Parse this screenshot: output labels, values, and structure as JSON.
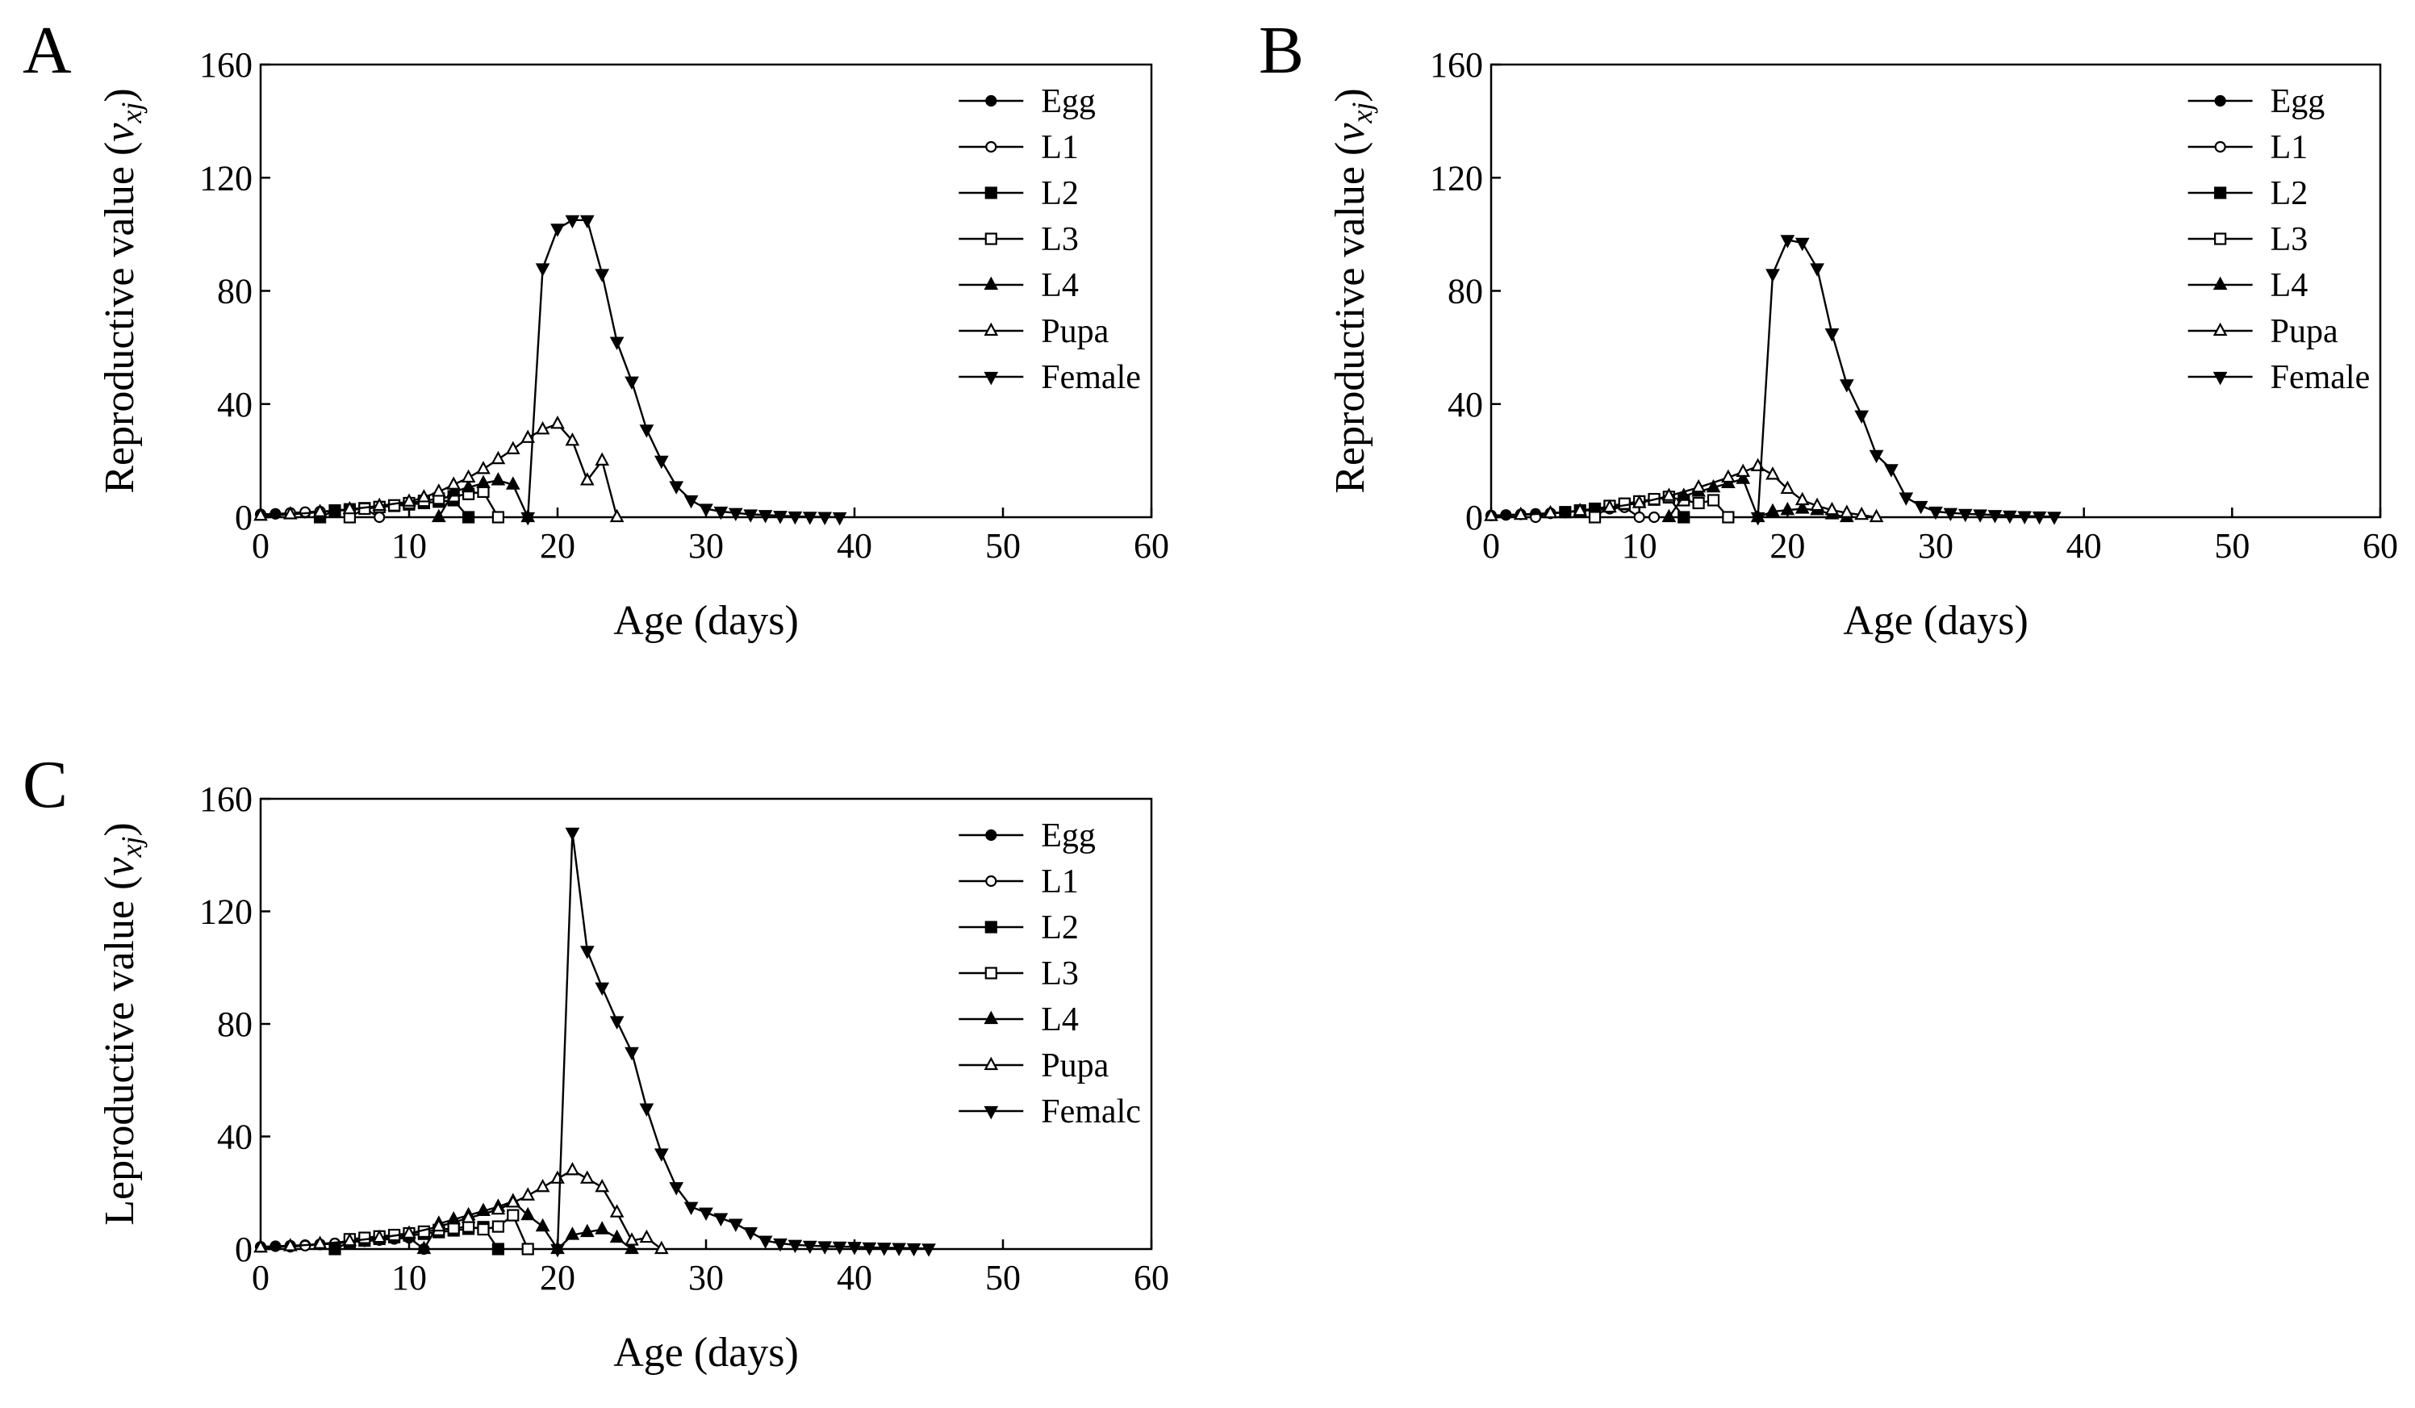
{
  "panels": [
    {
      "letter": "A",
      "xlabel": "Age (days)",
      "ylabel_main": "Reproductive value (",
      "ylabel_var": "v",
      "ylabel_sub": "xj",
      "ylabel_close": ")"
    },
    {
      "letter": "B",
      "xlabel": "Age (days)",
      "ylabel_main": "Reproductive value (",
      "ylabel_var": "v",
      "ylabel_sub": "xj",
      "ylabel_close": ")"
    },
    {
      "letter": "C",
      "xlabel": "Age (days)",
      "ylabel_main": "Leproductive value (",
      "ylabel_var": "v",
      "ylabel_sub": "xj",
      "ylabel_close": ")"
    }
  ],
  "legend": [
    "Egg",
    "L1",
    "L2",
    "L3",
    "L4",
    "Pupa",
    "Female"
  ],
  "legend_c": [
    "Egg",
    "L1",
    "L2",
    "L3",
    "L4",
    "Pupa",
    "Femalc"
  ],
  "series_styles": {
    "Egg": {
      "marker": "circle",
      "fill": "#000000"
    },
    "L1": {
      "marker": "circle",
      "fill": "#ffffff"
    },
    "L2": {
      "marker": "square",
      "fill": "#000000"
    },
    "L3": {
      "marker": "square",
      "fill": "#ffffff"
    },
    "L4": {
      "marker": "triangle-up",
      "fill": "#000000"
    },
    "Pupa": {
      "marker": "triangle-up",
      "fill": "#ffffff"
    },
    "Female": {
      "marker": "triangle-down",
      "fill": "#000000"
    }
  },
  "chart_data": [
    {
      "type": "line",
      "title": "",
      "xlabel": "Age (days)",
      "ylabel": "Reproductive value (vxj)",
      "xlim": [
        0,
        60
      ],
      "ylim": [
        0,
        160
      ],
      "xticks": [
        0,
        10,
        20,
        30,
        40,
        50,
        60
      ],
      "yticks": [
        0,
        40,
        80,
        120,
        160
      ],
      "legend_position": "top-right",
      "grid": false,
      "series": [
        {
          "name": "Egg",
          "x": [
            0,
            1,
            2,
            3,
            4
          ],
          "y": [
            1.0,
            1.2,
            1.4,
            1.6,
            1.9
          ]
        },
        {
          "name": "L1",
          "x": [
            2,
            3,
            4,
            5,
            6,
            7,
            8
          ],
          "y": [
            1.5,
            1.8,
            2.0,
            2.3,
            2.6,
            3.0,
            0
          ]
        },
        {
          "name": "L2",
          "x": [
            4,
            5,
            6,
            7,
            8,
            9,
            10,
            11,
            12,
            13,
            14
          ],
          "y": [
            0,
            2.4,
            2.8,
            3.2,
            3.6,
            4.0,
            4.5,
            5.0,
            5.5,
            6.0,
            0
          ]
        },
        {
          "name": "L3",
          "x": [
            6,
            7,
            8,
            9,
            10,
            11,
            12,
            13,
            14,
            15,
            16
          ],
          "y": [
            0,
            3.0,
            3.6,
            4.2,
            5.0,
            5.8,
            6.6,
            7.4,
            8.2,
            9.0,
            0
          ]
        },
        {
          "name": "L4",
          "x": [
            12,
            13,
            14,
            15,
            16,
            17,
            18
          ],
          "y": [
            0,
            9.0,
            10.5,
            12.0,
            13.0,
            11.5,
            0
          ]
        },
        {
          "name": "Pupa",
          "x": [
            0,
            2,
            4,
            6,
            8,
            10,
            11,
            12,
            13,
            14,
            15,
            16,
            17,
            18,
            19,
            20,
            21,
            22,
            23,
            24
          ],
          "y": [
            0.5,
            1.0,
            1.8,
            2.8,
            4.0,
            5.5,
            7.0,
            9.0,
            11.5,
            14.0,
            17.0,
            20.5,
            24.0,
            28.0,
            31.0,
            33.0,
            27.0,
            13.0,
            20.0,
            0
          ]
        },
        {
          "name": "Female",
          "x": [
            18,
            19,
            20,
            21,
            22,
            23,
            24,
            25,
            26,
            27,
            28,
            29,
            30,
            31,
            32,
            33,
            34,
            35,
            36,
            37,
            38,
            39
          ],
          "y": [
            0,
            88,
            102,
            105,
            105,
            86,
            62,
            48,
            31,
            20,
            11,
            6,
            3,
            2,
            1.5,
            1.0,
            0.8,
            0.5,
            0.3,
            0.2,
            0.1,
            0
          ]
        }
      ]
    },
    {
      "type": "line",
      "title": "",
      "xlabel": "Age (days)",
      "ylabel": "Reproductive value (vxj)",
      "xlim": [
        0,
        60
      ],
      "ylim": [
        0,
        160
      ],
      "xticks": [
        0,
        10,
        20,
        30,
        40,
        50,
        60
      ],
      "yticks": [
        0,
        40,
        80,
        120,
        160
      ],
      "legend_position": "top-right",
      "grid": false,
      "series": [
        {
          "name": "Egg",
          "x": [
            0,
            1,
            2,
            3,
            4,
            5
          ],
          "y": [
            0.6,
            0.8,
            1.0,
            1.2,
            1.4,
            1.6
          ]
        },
        {
          "name": "L1",
          "x": [
            3,
            4,
            5,
            6,
            7,
            8,
            9,
            10,
            11
          ],
          "y": [
            0,
            1.4,
            1.8,
            2.2,
            2.6,
            3.0,
            3.5,
            0,
            0
          ]
        },
        {
          "name": "L2",
          "x": [
            5,
            6,
            7,
            8,
            9,
            10,
            11,
            12,
            13
          ],
          "y": [
            1.8,
            2.4,
            3.0,
            3.8,
            4.6,
            5.4,
            6.2,
            7.0,
            0
          ]
        },
        {
          "name": "L3",
          "x": [
            7,
            8,
            9,
            10,
            11,
            12,
            13,
            14,
            15,
            16
          ],
          "y": [
            0,
            4.0,
            4.8,
            5.6,
            6.4,
            7.2,
            6.0,
            5.0,
            6.0,
            0
          ]
        },
        {
          "name": "L4",
          "x": [
            12,
            13,
            14,
            15,
            16,
            17,
            18,
            19,
            20,
            21,
            22,
            23,
            24
          ],
          "y": [
            0,
            7.5,
            9.0,
            10.5,
            12.0,
            13.5,
            0,
            2.0,
            2.5,
            3.0,
            2.5,
            1.0,
            0
          ]
        },
        {
          "name": "Pupa",
          "x": [
            0,
            2,
            4,
            6,
            8,
            10,
            12,
            14,
            16,
            17,
            18,
            19,
            20,
            21,
            22,
            23,
            24,
            25,
            26
          ],
          "y": [
            0.4,
            0.8,
            1.4,
            2.2,
            3.4,
            5.0,
            7.5,
            10.5,
            14.0,
            16.0,
            18.0,
            15.0,
            10.0,
            6.0,
            4.0,
            2.5,
            1.5,
            0.8,
            0
          ]
        },
        {
          "name": "Female",
          "x": [
            18,
            19,
            20,
            21,
            22,
            23,
            24,
            25,
            26,
            27,
            28,
            29,
            30,
            31,
            32,
            33,
            34,
            35,
            36,
            37,
            38
          ],
          "y": [
            0,
            86,
            98,
            97,
            88,
            65,
            47,
            36,
            22,
            17,
            7,
            4,
            2,
            1.5,
            1.2,
            1.0,
            0.8,
            0.6,
            0.4,
            0.3,
            0.2
          ]
        }
      ]
    },
    {
      "type": "line",
      "title": "",
      "xlabel": "Age (days)",
      "ylabel": "Leproductive value (vxj)",
      "xlim": [
        0,
        60
      ],
      "ylim": [
        0,
        160
      ],
      "xticks": [
        0,
        10,
        20,
        30,
        40,
        50,
        60
      ],
      "yticks": [
        0,
        40,
        80,
        120,
        160
      ],
      "legend_position": "top-right",
      "grid": false,
      "series": [
        {
          "name": "Egg",
          "x": [
            0,
            1,
            2,
            3,
            4,
            5
          ],
          "y": [
            0.8,
            1.0,
            1.2,
            1.4,
            1.7,
            2.0
          ]
        },
        {
          "name": "L1",
          "x": [
            2,
            3,
            4,
            5,
            6,
            7,
            8,
            9,
            10,
            11
          ],
          "y": [
            0.8,
            1.2,
            1.6,
            2.0,
            2.4,
            2.8,
            3.2,
            3.6,
            4.0,
            0
          ]
        },
        {
          "name": "L2",
          "x": [
            5,
            6,
            7,
            8,
            9,
            10,
            11,
            12,
            13,
            14,
            15,
            16
          ],
          "y": [
            0,
            2.5,
            3.0,
            3.6,
            4.2,
            4.8,
            5.4,
            6.0,
            6.6,
            7.2,
            7.8,
            0
          ]
        },
        {
          "name": "L3",
          "x": [
            6,
            7,
            8,
            9,
            10,
            11,
            12,
            13,
            14,
            15,
            16,
            17,
            18
          ],
          "y": [
            3.5,
            4.0,
            4.5,
            5.0,
            5.6,
            6.2,
            6.8,
            7.4,
            8.0,
            7.0,
            8.0,
            12.0,
            0
          ]
        },
        {
          "name": "L4",
          "x": [
            11,
            12,
            13,
            14,
            15,
            16,
            17,
            18,
            19,
            20,
            21,
            22,
            23,
            24,
            25
          ],
          "y": [
            0,
            9.0,
            10.5,
            12.0,
            13.5,
            15.0,
            17.0,
            12.0,
            8.0,
            0,
            5.0,
            6.0,
            7.0,
            4.0,
            0
          ]
        },
        {
          "name": "Pupa",
          "x": [
            0,
            2,
            4,
            6,
            8,
            10,
            12,
            14,
            16,
            17,
            18,
            19,
            20,
            21,
            22,
            23,
            24,
            25,
            26,
            27
          ],
          "y": [
            0.5,
            1.0,
            1.8,
            2.8,
            4.0,
            5.5,
            8.0,
            11.0,
            14.0,
            16.5,
            19.0,
            22.0,
            25.0,
            28.0,
            25.0,
            22.0,
            13.0,
            3.0,
            4.0,
            0
          ]
        },
        {
          "name": "Female",
          "x": [
            20,
            21,
            22,
            23,
            24,
            25,
            26,
            27,
            28,
            29,
            30,
            31,
            32,
            33,
            34,
            35,
            36,
            37,
            38,
            39,
            40,
            41,
            42,
            43,
            44,
            45
          ],
          "y": [
            0,
            148,
            106,
            93,
            81,
            70,
            50,
            34,
            22,
            15,
            13,
            11,
            9,
            6,
            3,
            2,
            1.5,
            1.2,
            1.0,
            0.9,
            0.8,
            0.6,
            0.5,
            0.4,
            0.3,
            0.2
          ]
        }
      ]
    }
  ]
}
